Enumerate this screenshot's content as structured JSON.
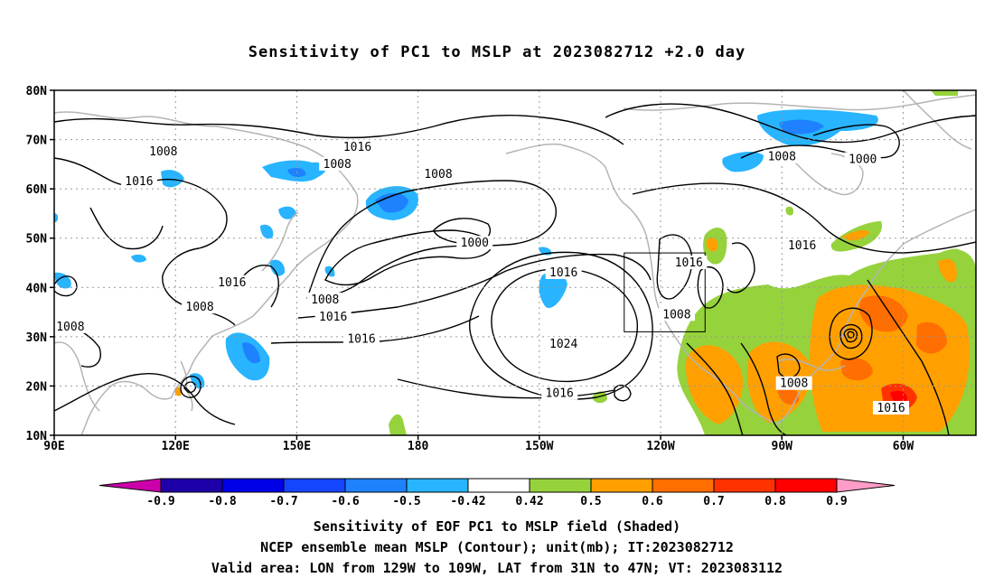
{
  "title": "Sensitivity of PC1 to MSLP at 2023082712 +2.0 day",
  "map": {
    "lat_labels": [
      "80N",
      "70N",
      "60N",
      "50N",
      "40N",
      "30N",
      "20N",
      "10N"
    ],
    "lon_labels": [
      "90E",
      "120E",
      "150E",
      "180",
      "150W",
      "120W",
      "90W",
      "60W"
    ],
    "contour_labels": [
      {
        "text": "1008",
        "lon": 117,
        "lat": 67.5
      },
      {
        "text": "1008",
        "lon": 160,
        "lat": 65
      },
      {
        "text": "1016",
        "lon": 165,
        "lat": 68.5
      },
      {
        "text": "1008",
        "lon": -175,
        "lat": 63
      },
      {
        "text": "1016",
        "lon": 111,
        "lat": 61.5
      },
      {
        "text": "1000",
        "lon": -166,
        "lat": 49
      },
      {
        "text": "1016",
        "lon": -144,
        "lat": 43
      },
      {
        "text": "1016",
        "lon": -113,
        "lat": 45
      },
      {
        "text": "1016",
        "lon": -85,
        "lat": 48.5
      },
      {
        "text": "1000",
        "lon": -70,
        "lat": 66
      },
      {
        "text": "1008",
        "lon": -90,
        "lat": 66.5
      },
      {
        "text": "1016",
        "lon": 134,
        "lat": 41
      },
      {
        "text": "1008",
        "lon": 126,
        "lat": 36
      },
      {
        "text": "1008",
        "lon": 94,
        "lat": 32
      },
      {
        "text": "1008",
        "lon": 157,
        "lat": 37.5
      },
      {
        "text": "1016",
        "lon": 159,
        "lat": 34
      },
      {
        "text": "1016",
        "lon": 166,
        "lat": 29.5
      },
      {
        "text": "1024",
        "lon": -144,
        "lat": 28.5
      },
      {
        "text": "1008",
        "lon": -116,
        "lat": 34.5
      },
      {
        "text": "1016",
        "lon": -145,
        "lat": 18.5
      },
      {
        "text": "1008",
        "lon": -87,
        "lat": 20.5
      },
      {
        "text": "1016",
        "lon": -63,
        "lat": 15.5
      }
    ],
    "valid_box": {
      "lon_min": -129,
      "lon_max": -109,
      "lat_min": 31,
      "lat_max": 47
    }
  },
  "colorbar": {
    "labels": [
      "-0.9",
      "-0.8",
      "-0.7",
      "-0.6",
      "-0.5",
      "-0.42",
      "0.42",
      "0.5",
      "0.6",
      "0.7",
      "0.8",
      "0.9"
    ],
    "colors": [
      "#1e00a8",
      "#0000e6",
      "#1446ff",
      "#1e82ff",
      "#28b4ff",
      "#ffffff",
      "#96d23c",
      "#ffa000",
      "#ff6e00",
      "#ff3200",
      "#ff0000"
    ],
    "low_color": "#cc00aa",
    "high_color": "#ff9cc8"
  },
  "caption": {
    "line1": "Sensitivity of EOF PC1 to MSLP field (Shaded)",
    "line2": "NCEP ensemble mean MSLP (Contour); unit(mb); IT:2023082712",
    "line3": "Valid area: LON from 129W to 109W, LAT from 31N to 47N; VT: 2023083112"
  }
}
